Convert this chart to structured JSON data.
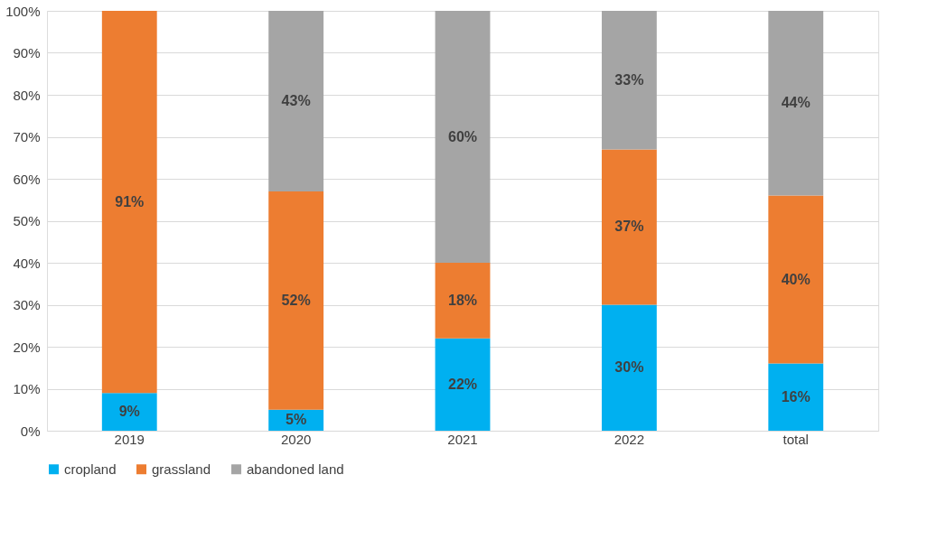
{
  "chart_data": {
    "type": "bar",
    "stacked": true,
    "categories": [
      "2019",
      "2020",
      "2021",
      "2022",
      "total"
    ],
    "series": [
      {
        "name": "cropland",
        "color": "#00b0f0",
        "values": [
          9,
          5,
          22,
          30,
          16
        ],
        "value_labels": [
          "9%",
          "5%",
          "22%",
          "30%",
          "16%"
        ]
      },
      {
        "name": "grassland",
        "color": "#ed7d31",
        "values": [
          91,
          52,
          18,
          37,
          40
        ],
        "value_labels": [
          "91%",
          "52%",
          "18%",
          "37%",
          "40%"
        ]
      },
      {
        "name": "abandoned land",
        "color": "#a5a5a5",
        "values": [
          0,
          43,
          60,
          33,
          44
        ],
        "value_labels": [
          null,
          "43%",
          "60%",
          "33%",
          "44%"
        ]
      }
    ],
    "ylim": [
      0,
      100
    ],
    "yticks": [
      {
        "value": 0,
        "label": "0%"
      },
      {
        "value": 10,
        "label": "10%"
      },
      {
        "value": 20,
        "label": "20%"
      },
      {
        "value": 30,
        "label": "30%"
      },
      {
        "value": 40,
        "label": "40%"
      },
      {
        "value": 50,
        "label": "50%"
      },
      {
        "value": 60,
        "label": "60%"
      },
      {
        "value": 70,
        "label": "70%"
      },
      {
        "value": 80,
        "label": "80%"
      },
      {
        "value": 90,
        "label": "90%"
      },
      {
        "value": 100,
        "label": "100%"
      }
    ],
    "grid": "y",
    "legend": "bottom"
  }
}
